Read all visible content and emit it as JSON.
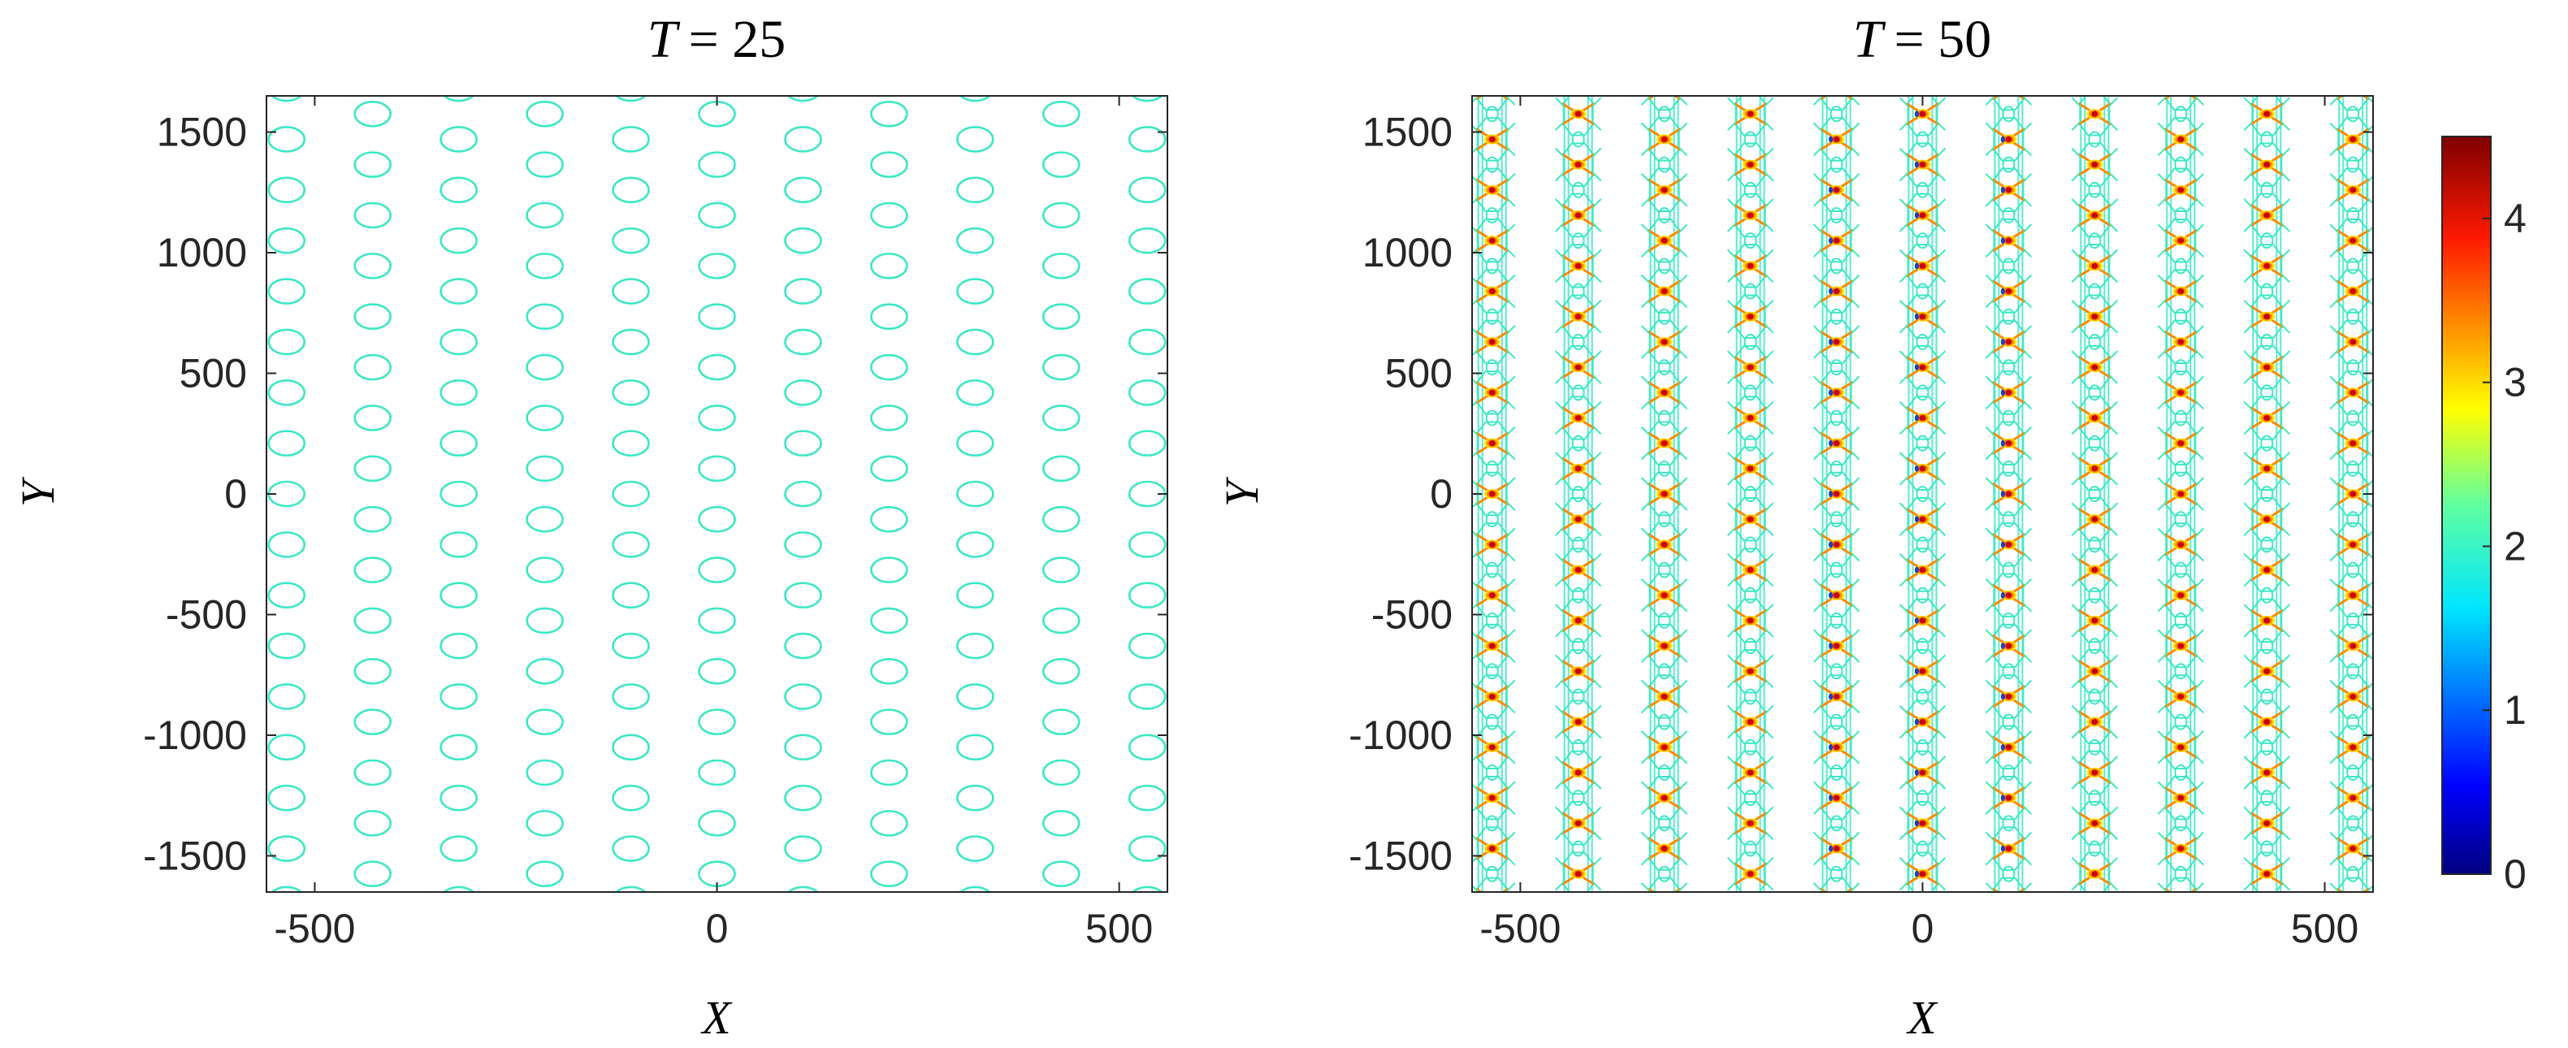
{
  "chart_data": [
    {
      "type": "contour",
      "title_lhs": "T",
      "title_rhs": "= 25",
      "xlabel": "X",
      "ylabel": "Y",
      "xlim": [
        -560,
        560
      ],
      "ylim": [
        -1650,
        1650
      ],
      "xticks": [
        -500,
        0,
        500
      ],
      "xtick_labels": [
        "-500",
        "0",
        "500"
      ],
      "yticks": [
        -1500,
        -1000,
        -500,
        0,
        500,
        1000,
        1500
      ],
      "ytick_labels": [
        "-1500",
        "-1000",
        "-500",
        "0",
        "500",
        "1000",
        "1500"
      ],
      "column_x": [
        -535,
        -428,
        -321,
        -214,
        -107,
        0,
        107,
        214,
        321,
        428,
        535
      ],
      "row_spacing": 210,
      "contour_level": 2.2,
      "contour_color": "#3de8c4"
    },
    {
      "type": "contour",
      "title_lhs": "T",
      "title_rhs": "= 50",
      "xlabel": "X",
      "ylabel": "Y",
      "xlim": [
        -560,
        560
      ],
      "ylim": [
        -1650,
        1650
      ],
      "xticks": [
        -500,
        0,
        500
      ],
      "xtick_labels": [
        "-500",
        "0",
        "500"
      ],
      "yticks": [
        -1500,
        -1000,
        -500,
        0,
        500,
        1000,
        1500
      ],
      "ytick_labels": [
        "-1500",
        "-1000",
        "-500",
        "0",
        "500",
        "1000",
        "1500"
      ],
      "column_x": [
        -535,
        -428,
        -321,
        -214,
        -107,
        0,
        107,
        214,
        321,
        428,
        535
      ],
      "row_spacing": 210,
      "contour_levels": [
        0.5,
        1.5,
        2.2,
        3.0,
        4.2
      ],
      "colorbar": {
        "colormap": "jet",
        "clim": [
          0,
          4.5
        ],
        "ticks": [
          0,
          1,
          2,
          3,
          4
        ],
        "tick_labels": [
          "0",
          "1",
          "2",
          "3",
          "4"
        ]
      }
    }
  ],
  "colors": {
    "contour_mid": "#3de8c4",
    "peak_high": "#c8000a",
    "peak_orange": "#ff8a00",
    "peak_yellow": "#ffe800",
    "low_blue": "#1e3cc8"
  }
}
